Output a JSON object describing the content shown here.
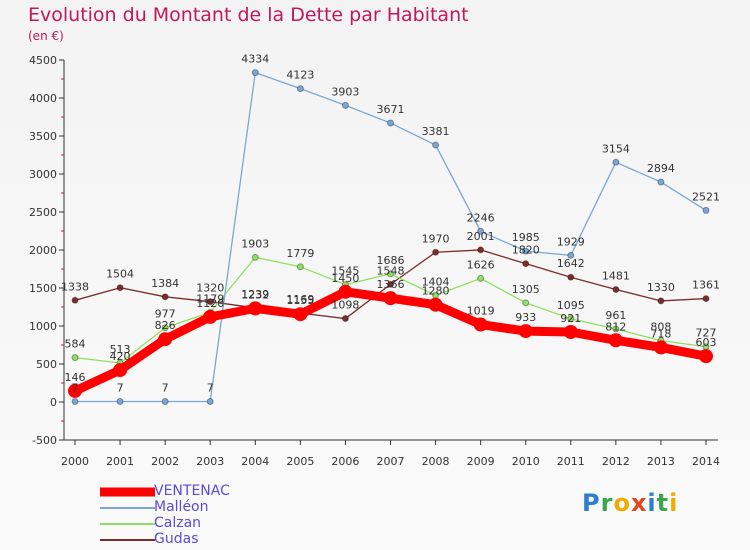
{
  "header": {
    "title": "Evolution du Montant de la Dette par Habitant",
    "subtitle": "(en €)"
  },
  "brand": {
    "letters": [
      "P",
      "r",
      "o",
      "x",
      "i",
      "t",
      "i"
    ]
  },
  "chart_data": {
    "type": "line",
    "title": "Evolution du Montant de la Dette par Habitant",
    "ylabel": "(en €)",
    "x": [
      "2000",
      "2001",
      "2002",
      "2003",
      "2004",
      "2005",
      "2006",
      "2007",
      "2008",
      "2009",
      "2010",
      "2011",
      "2012",
      "2013",
      "2014"
    ],
    "ylim": [
      -500,
      4500
    ],
    "yticks": [
      -500,
      0,
      500,
      1000,
      1500,
      2000,
      2500,
      3000,
      3500,
      4000,
      4500
    ],
    "grid": false,
    "legend_position": "bottom-left",
    "series": [
      {
        "name": "VENTENAC",
        "color": "#ff0000",
        "values": [
          146,
          420,
          826,
          1120,
          1232,
          1155,
          1450,
          1366,
          1280,
          1019,
          933,
          921,
          812,
          718,
          603
        ]
      },
      {
        "name": "Malléon",
        "color": "#7aa7d6",
        "values": [
          7,
          7,
          7,
          7,
          4334,
          4123,
          3903,
          3671,
          3381,
          2246,
          1985,
          1929,
          3154,
          2894,
          2521
        ]
      },
      {
        "name": "Calzan",
        "color": "#8ee060",
        "values": [
          584,
          513,
          977,
          1179,
          1903,
          1779,
          1545,
          1686,
          1404,
          1626,
          1305,
          1095,
          961,
          808,
          727
        ]
      },
      {
        "name": "Gudas",
        "color": "#7b2c2c",
        "values": [
          1338,
          1504,
          1384,
          1320,
          1239,
          1169,
          1098,
          1548,
          1970,
          2001,
          1820,
          1642,
          1481,
          1330,
          1361
        ]
      }
    ]
  }
}
